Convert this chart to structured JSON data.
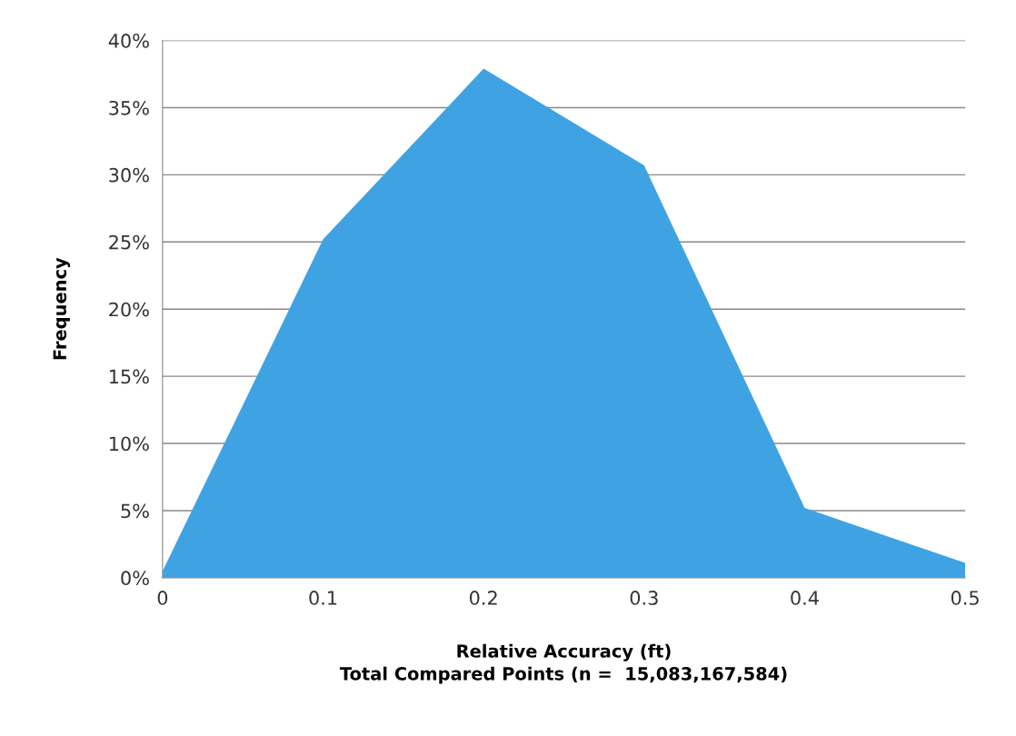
{
  "chart_data": {
    "type": "area",
    "xlabel": "Relative Accuracy (ft)\nTotal Compared Points (n =  15,083,167,584)",
    "ylabel": "Frequency",
    "x": [
      0,
      0.1,
      0.2,
      0.3,
      0.4,
      0.5
    ],
    "series": [
      {
        "color": "#3fa3e3",
        "values": [
          0.5,
          25.2,
          37.9,
          30.7,
          5.2,
          1.1
        ]
      }
    ],
    "xlim": [
      0,
      0.5
    ],
    "xticks": [
      0,
      0.1,
      0.2,
      0.3,
      0.4,
      0.5
    ],
    "ylim": [
      0,
      40
    ],
    "yticks": [
      {
        "value": 0,
        "label": "0%"
      },
      {
        "value": 5,
        "label": "5%"
      },
      {
        "value": 10,
        "label": "10%"
      },
      {
        "value": 15,
        "label": "15%"
      },
      {
        "value": 20,
        "label": "20%"
      },
      {
        "value": 25,
        "label": "25%"
      },
      {
        "value": 30,
        "label": "30%"
      },
      {
        "value": 35,
        "label": "35%"
      },
      {
        "value": 40,
        "label": "40%"
      }
    ],
    "grid": "y"
  }
}
